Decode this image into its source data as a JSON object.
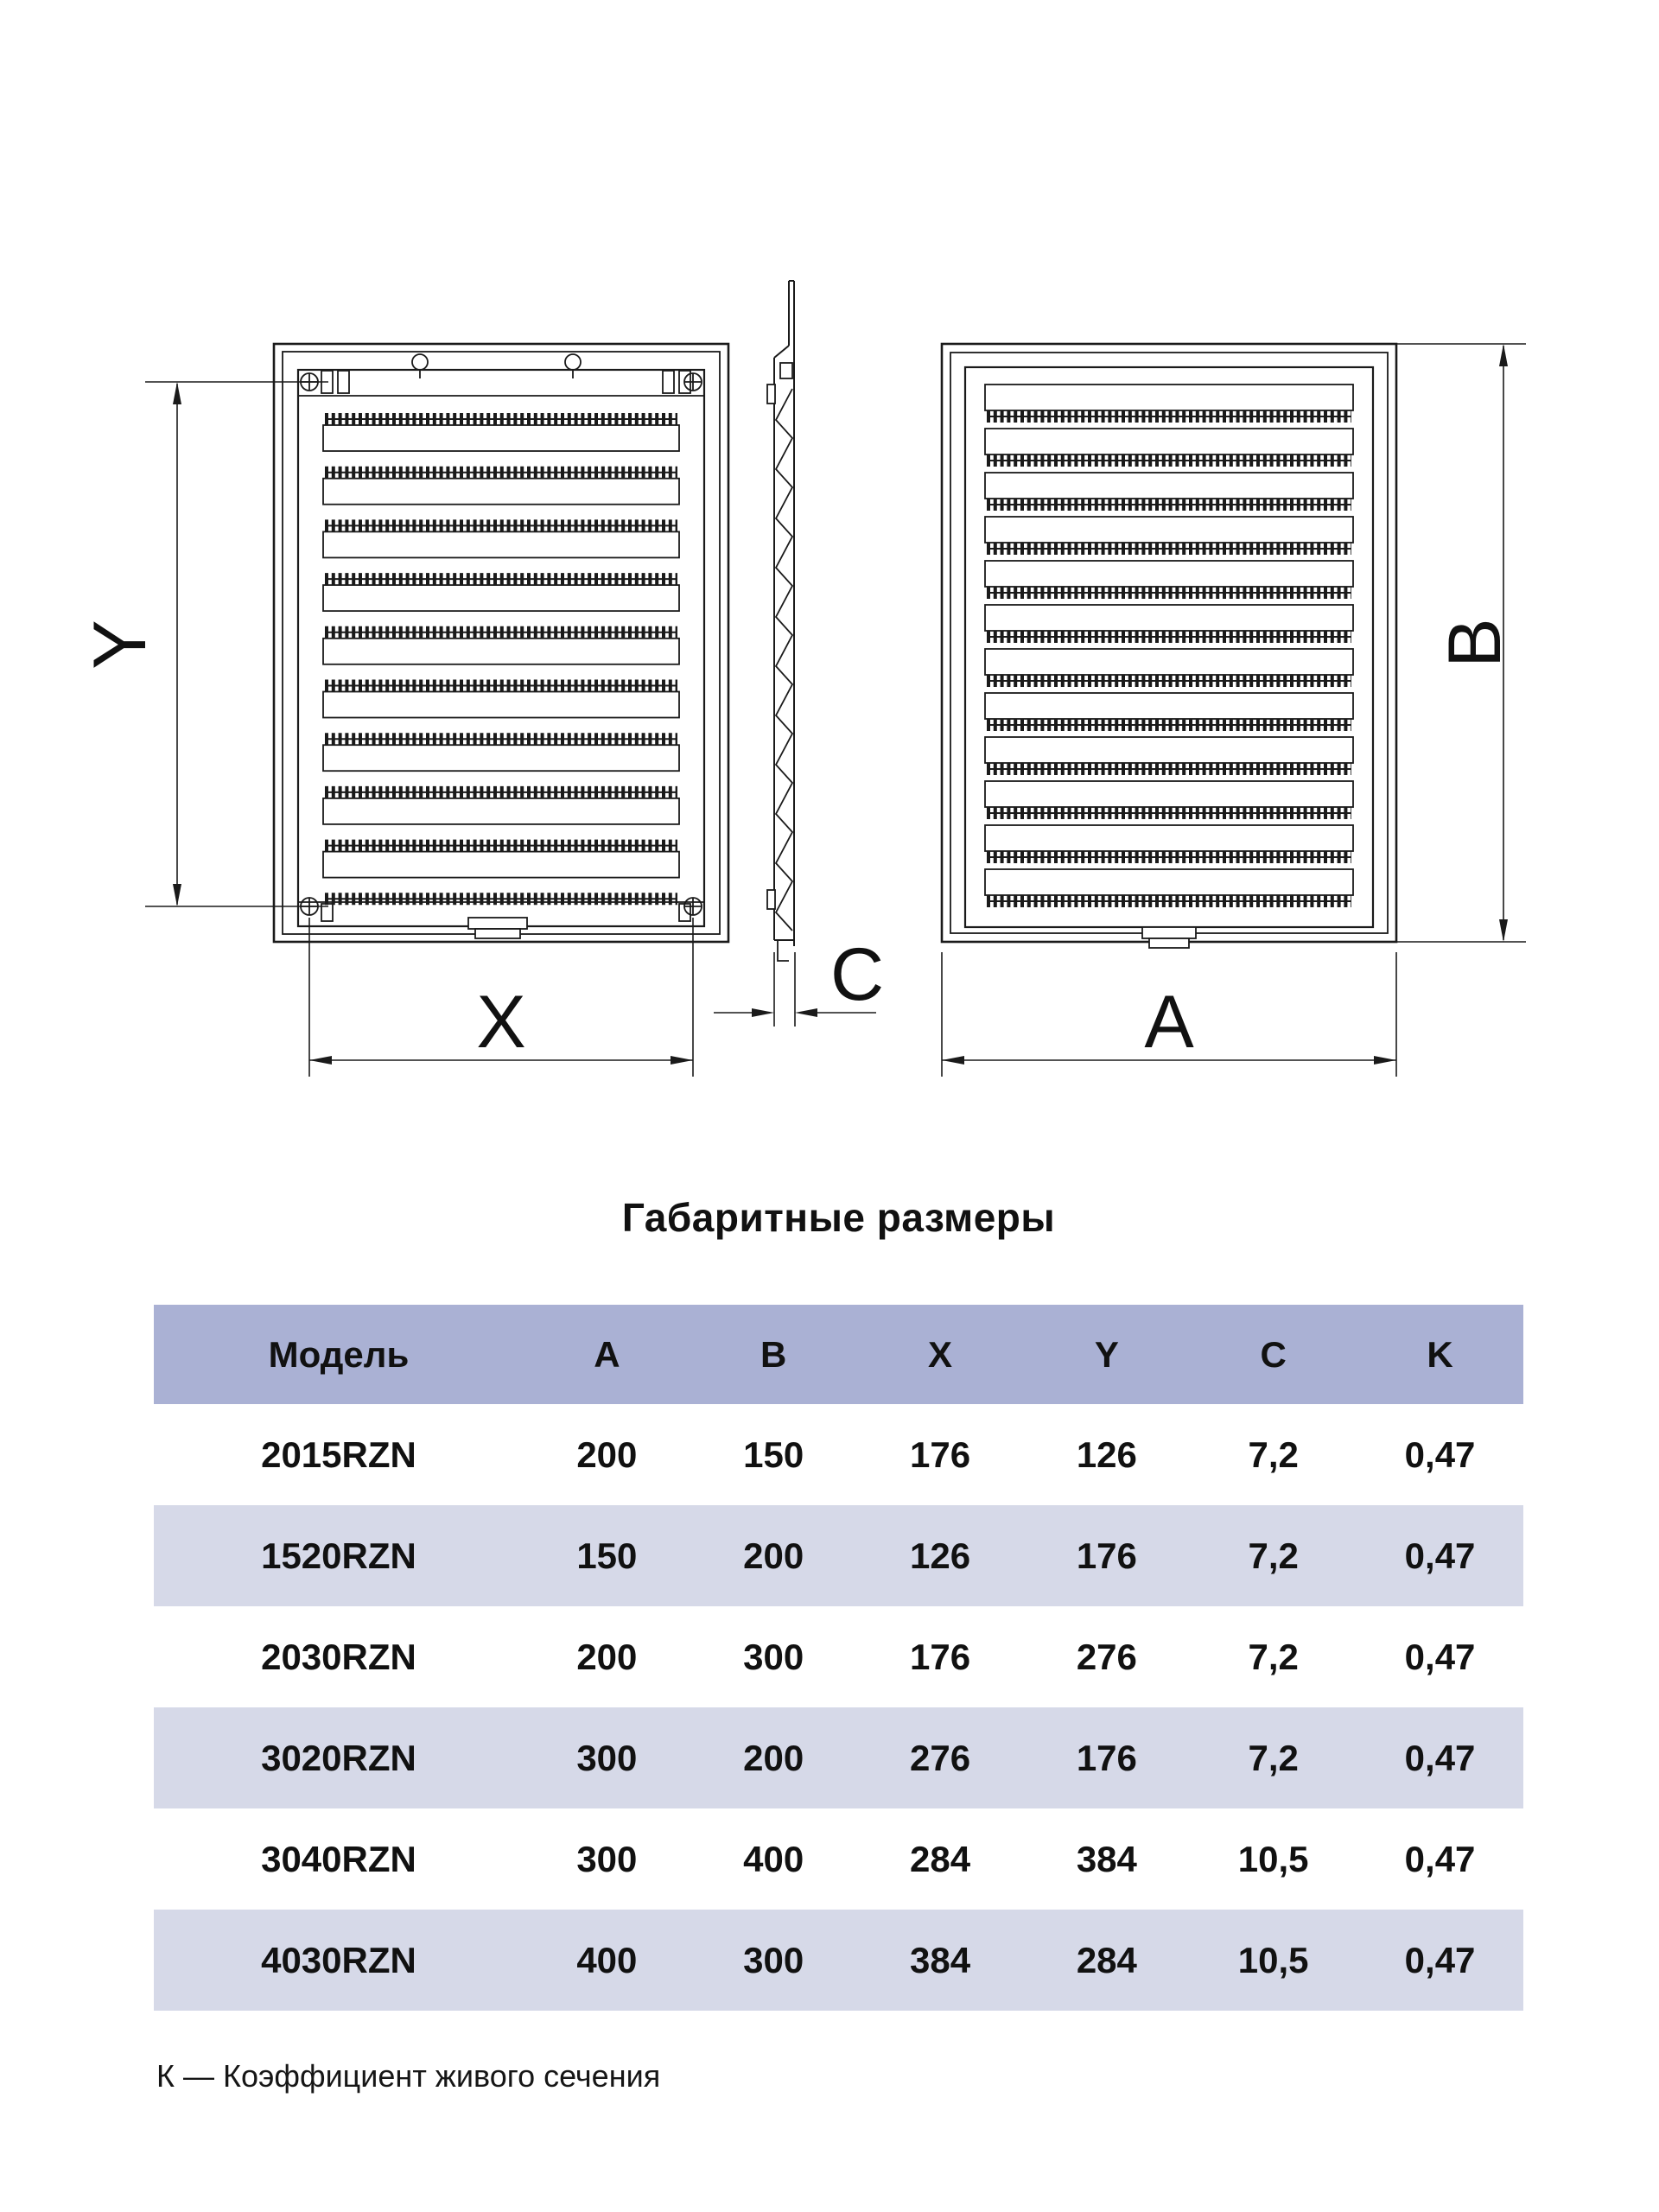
{
  "drawing": {
    "labels": {
      "y": "Y",
      "x": "X",
      "c": "C",
      "a": "A",
      "b": "B"
    }
  },
  "title": "Габаритные размеры",
  "table": {
    "headers": [
      "Модель",
      "A",
      "B",
      "X",
      "Y",
      "C",
      "K"
    ],
    "rows": [
      [
        "2015RZN",
        "200",
        "150",
        "176",
        "126",
        "7,2",
        "0,47"
      ],
      [
        "1520RZN",
        "150",
        "200",
        "126",
        "176",
        "7,2",
        "0,47"
      ],
      [
        "2030RZN",
        "200",
        "300",
        "176",
        "276",
        "7,2",
        "0,47"
      ],
      [
        "3020RZN",
        "300",
        "200",
        "276",
        "176",
        "7,2",
        "0,47"
      ],
      [
        "3040RZN",
        "300",
        "400",
        "284",
        "384",
        "10,5",
        "0,47"
      ],
      [
        "4030RZN",
        "400",
        "300",
        "384",
        "284",
        "10,5",
        "0,47"
      ]
    ]
  },
  "footnote": "К — Коэффициент живого сечения",
  "colors": {
    "header_bg": "#aab1d4",
    "row_alt_bg": "#d6d9e8",
    "line": "#1a1a1a",
    "text": "#111111",
    "background": "#ffffff"
  }
}
